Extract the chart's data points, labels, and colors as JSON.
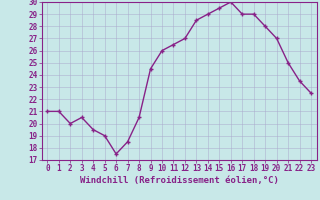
{
  "x": [
    0,
    1,
    2,
    3,
    4,
    5,
    6,
    7,
    8,
    9,
    10,
    11,
    12,
    13,
    14,
    15,
    16,
    17,
    18,
    19,
    20,
    21,
    22,
    23
  ],
  "y": [
    21,
    21,
    20,
    20.5,
    19.5,
    19,
    17.5,
    18.5,
    20.5,
    24.5,
    26,
    26.5,
    27,
    28.5,
    29,
    29.5,
    30,
    29,
    29,
    28,
    27,
    25,
    23.5,
    22.5
  ],
  "line_color": "#882288",
  "marker": "+",
  "marker_size": 3,
  "bg_color": "#c8e8e8",
  "grid_color": "#aaaacc",
  "xlabel": "Windchill (Refroidissement éolien,°C)",
  "xlabel_fontsize": 6.5,
  "ylim": [
    17,
    30
  ],
  "xlim": [
    -0.5,
    23.5
  ],
  "yticks": [
    17,
    18,
    19,
    20,
    21,
    22,
    23,
    24,
    25,
    26,
    27,
    28,
    29,
    30
  ],
  "xticks": [
    0,
    1,
    2,
    3,
    4,
    5,
    6,
    7,
    8,
    9,
    10,
    11,
    12,
    13,
    14,
    15,
    16,
    17,
    18,
    19,
    20,
    21,
    22,
    23
  ],
  "tick_fontsize": 5.5,
  "tick_color": "#882288",
  "axis_color": "#882288",
  "spine_color": "#882288",
  "linewidth": 1.0
}
